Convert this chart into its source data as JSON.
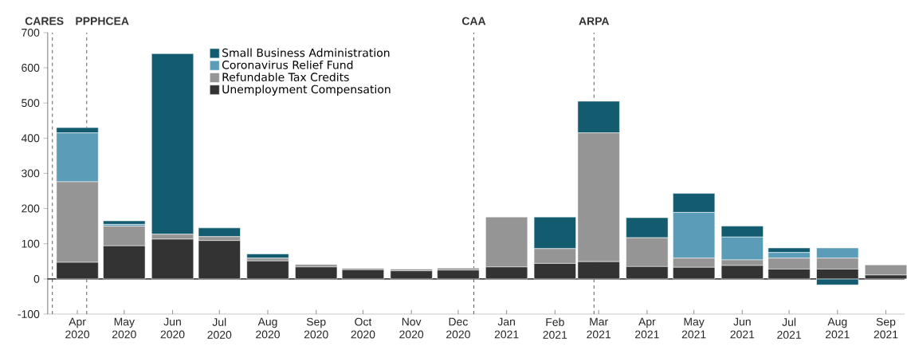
{
  "chart_data": {
    "type": "bar",
    "stacked": true,
    "x": [
      "2020-04",
      "2020-05",
      "2020-06",
      "2020-07",
      "2020-08",
      "2020-09",
      "2020-10",
      "2020-11",
      "2020-12",
      "2021-01",
      "2021-02",
      "2021-03",
      "2021-04",
      "2021-05",
      "2021-06",
      "2021-07",
      "2021-08",
      "2021-09"
    ],
    "xlim": [
      "2020-03-13",
      "2021-09-13"
    ],
    "xticks": [
      {
        "value": "2020-04",
        "label": "Apr 2020"
      },
      {
        "value": "2020-05",
        "label": "May 2020"
      },
      {
        "value": "2020-06",
        "label": "Jun 2020"
      },
      {
        "value": "2020-07",
        "label": "Jul 2020"
      },
      {
        "value": "2020-08",
        "label": "Aug 2020"
      },
      {
        "value": "2020-09",
        "label": "Sep 2020"
      },
      {
        "value": "2020-10",
        "label": "Oct 2020"
      },
      {
        "value": "2020-11",
        "label": "Nov 2020"
      },
      {
        "value": "2020-12",
        "label": "Dec 2020"
      },
      {
        "value": "2021-01",
        "label": "Jan 2021"
      },
      {
        "value": "2021-02",
        "label": "Feb 2021"
      },
      {
        "value": "2021-03",
        "label": "Mar 2021"
      },
      {
        "value": "2021-04",
        "label": "Apr 2021"
      },
      {
        "value": "2021-05",
        "label": "May 2021"
      },
      {
        "value": "2021-06",
        "label": "Jun 2021"
      },
      {
        "value": "2021-07",
        "label": "Jul 2021"
      },
      {
        "value": "2021-08",
        "label": "Aug 2021"
      },
      {
        "value": "2021-09",
        "label": "Sep 2021"
      }
    ],
    "series": [
      {
        "name": "Unemployment Compensation",
        "color": "#333333",
        "values": [
          47,
          94,
          113,
          109,
          51,
          34,
          26,
          23,
          25,
          34,
          44,
          49,
          35,
          33,
          38,
          28,
          28,
          11
        ]
      },
      {
        "name": "Refundable Tax Credits",
        "color": "#959595",
        "values": [
          229,
          56,
          14,
          11,
          8,
          7,
          4,
          5,
          6,
          142,
          42,
          366,
          82,
          26,
          16,
          31,
          31,
          29
        ]
      },
      {
        "name": "Coronavirus Relief Fund",
        "color": "#5b9db8",
        "values": [
          139,
          5,
          0,
          0,
          0,
          0,
          0,
          0,
          0,
          0,
          0,
          0,
          0,
          130,
          65,
          16,
          29,
          0
        ]
      },
      {
        "name": "Small Business Administration",
        "color": "#135c70",
        "values": [
          15,
          10,
          513,
          25,
          12,
          0,
          0,
          0,
          0,
          0,
          90,
          90,
          57,
          54,
          31,
          13,
          -17,
          0
        ]
      }
    ],
    "ylim": [
      -100,
      700
    ],
    "yticks": [
      -100,
      0,
      100,
      200,
      300,
      400,
      500,
      600,
      700
    ],
    "ref_lines": [
      {
        "axis": "x",
        "value": "2020-03-16",
        "label": "CARES",
        "line_style": "dashed",
        "color": "#333333"
      },
      {
        "axis": "x",
        "value": "2020-04-07",
        "label": "PPPHCEA",
        "line_style": "dashed",
        "color": "#333333"
      },
      {
        "axis": "x",
        "value": "2020-12-11",
        "label": "CAA",
        "line_style": "dashed",
        "color": "#333333"
      },
      {
        "axis": "x",
        "value": "2021-02-26",
        "label": "ARPA",
        "line_style": "dashed",
        "color": "#333333"
      },
      {
        "axis": "y",
        "value": 0,
        "line_style": "solid",
        "color": "#000000"
      }
    ],
    "legend": "top left",
    "grid": false
  }
}
